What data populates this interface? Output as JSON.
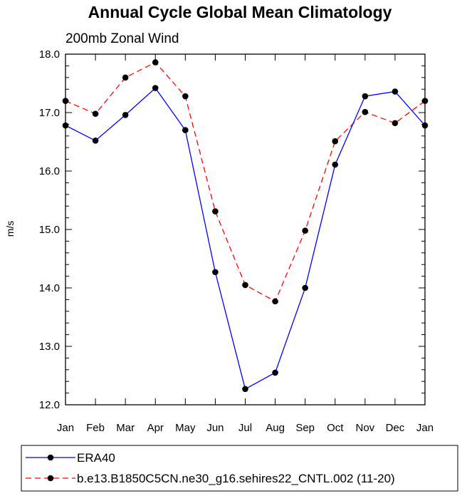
{
  "chart_data": {
    "type": "line",
    "title": "Annual Cycle Global Mean Climatology",
    "subtitle": "200mb Zonal Wind",
    "xlabel": "",
    "ylabel": "m/s",
    "categories": [
      "Jan",
      "Feb",
      "Mar",
      "Apr",
      "May",
      "Jun",
      "Jul",
      "Aug",
      "Sep",
      "Oct",
      "Nov",
      "Dec",
      "Jan"
    ],
    "ylim": [
      12.0,
      18.0
    ],
    "yticks": [
      "12.0",
      "13.0",
      "14.0",
      "15.0",
      "16.0",
      "17.0",
      "18.0"
    ],
    "grid": false,
    "legend_position": "bottom",
    "series": [
      {
        "name": "ERA40",
        "color": "#0000ff",
        "line_style": "solid",
        "values": [
          16.78,
          16.52,
          16.96,
          17.42,
          16.7,
          14.27,
          12.27,
          12.55,
          14.0,
          16.11,
          17.28,
          17.36,
          16.78
        ]
      },
      {
        "name": "b.e13.B1850C5CN.ne30_g16.sehires22_CNTL.002 (11-20)",
        "color": "#ff0000",
        "line_style": "dashed",
        "values": [
          17.2,
          16.98,
          17.6,
          17.86,
          17.28,
          15.31,
          14.05,
          13.77,
          14.98,
          16.51,
          17.01,
          16.82,
          17.2
        ]
      }
    ]
  }
}
